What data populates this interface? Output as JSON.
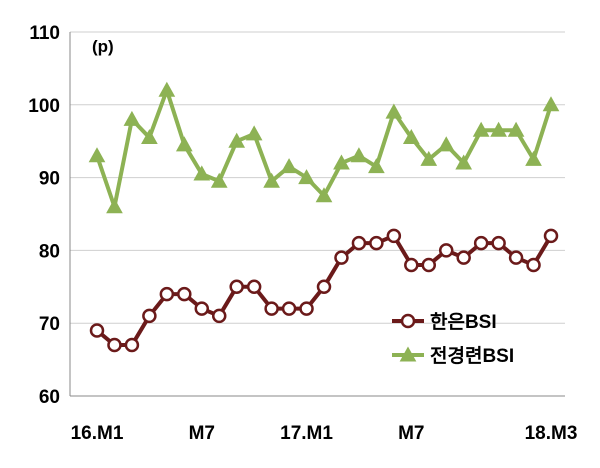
{
  "chart_data": {
    "type": "line",
    "unit_label": "(p)",
    "ylim": [
      60,
      110
    ],
    "y_ticks": [
      60,
      70,
      80,
      90,
      100,
      110
    ],
    "x_tick_labels": [
      {
        "index": 0,
        "label": "16.M1"
      },
      {
        "index": 6,
        "label": "M7"
      },
      {
        "index": 12,
        "label": "17.M1"
      },
      {
        "index": 18,
        "label": "M7"
      },
      {
        "index": 26,
        "label": "18.M3"
      }
    ],
    "grid": "horizontal",
    "legend_position": "bottom-right",
    "series": [
      {
        "name": "한은BSI",
        "color": "#6b1a1a",
        "marker": "circle-open",
        "values": [
          69,
          67,
          67,
          71,
          74,
          74,
          72,
          71,
          75,
          75,
          72,
          72,
          72,
          75,
          79,
          81,
          81,
          82,
          78,
          78,
          80,
          79,
          81,
          81,
          79,
          78,
          82
        ]
      },
      {
        "name": "전경련BSI",
        "color": "#8db254",
        "marker": "triangle",
        "values": [
          93,
          86,
          98,
          95.5,
          102,
          94.5,
          90.5,
          89.5,
          95,
          96,
          89.5,
          91.5,
          90,
          87.5,
          92,
          93,
          91.5,
          99,
          95.5,
          92.5,
          94.5,
          92,
          96.5,
          96.5,
          96.5,
          92.5,
          100
        ]
      }
    ]
  }
}
